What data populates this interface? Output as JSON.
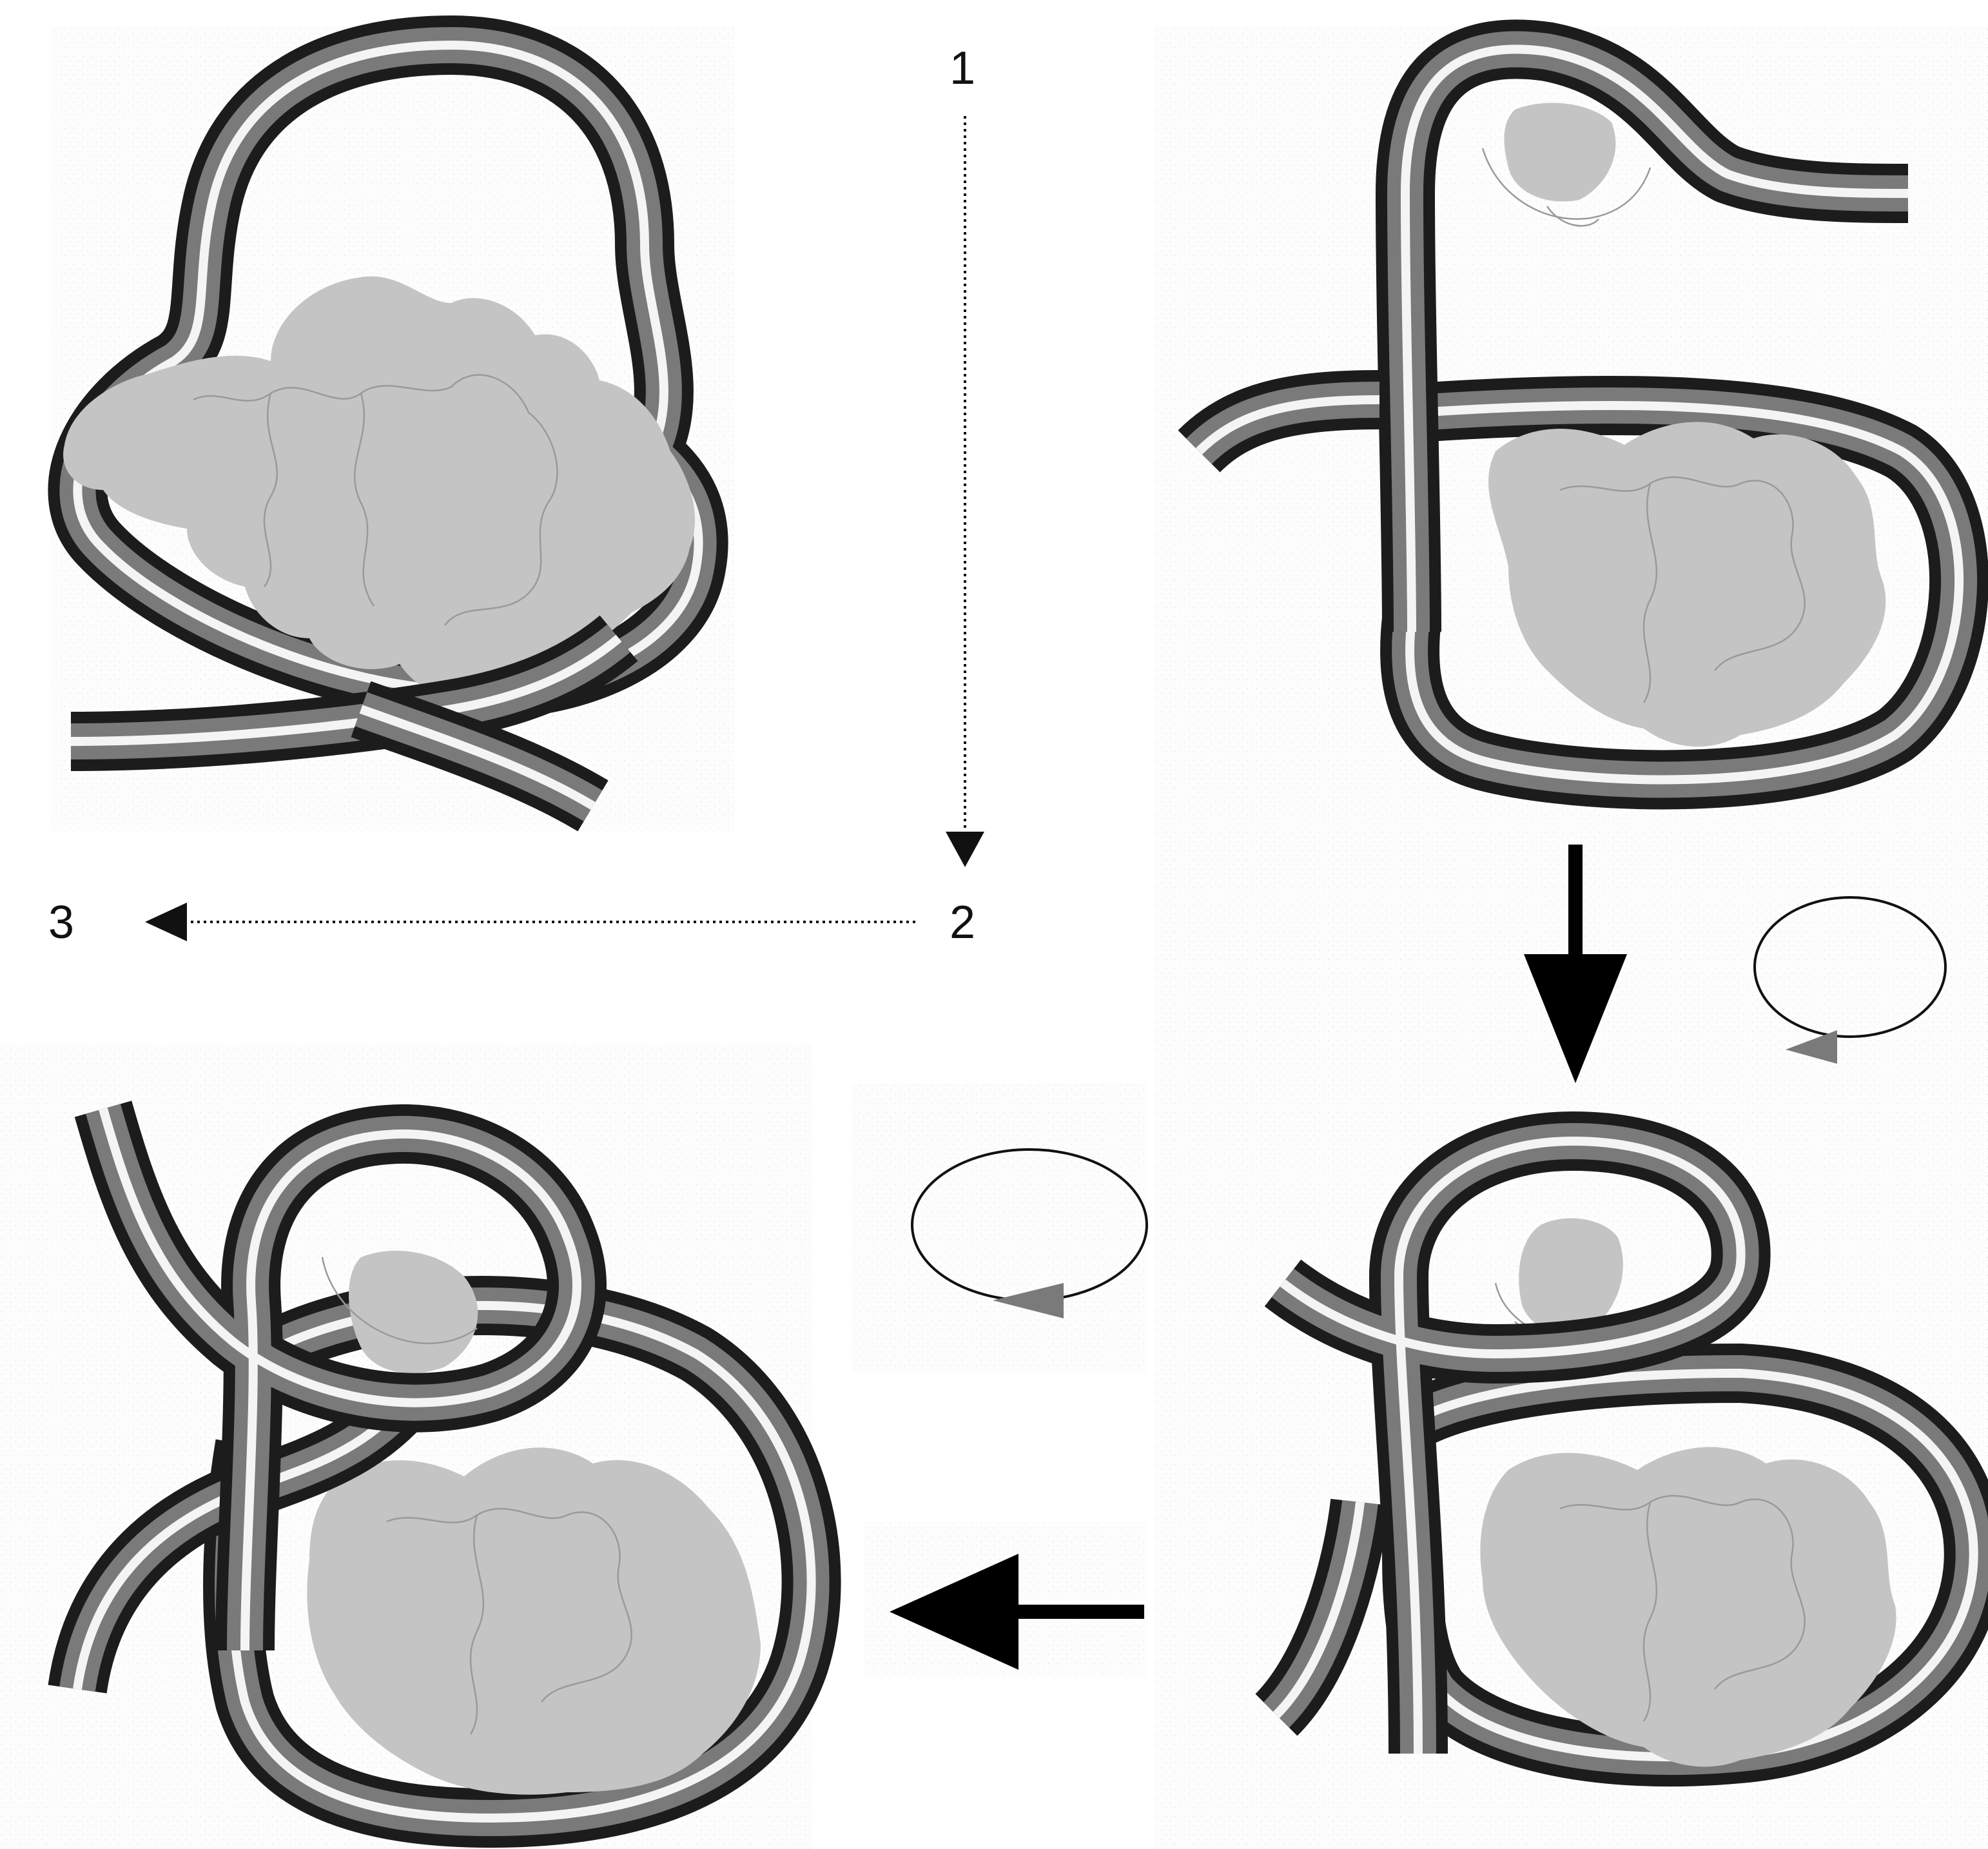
{
  "labels": {
    "step1": "1",
    "step2": "2",
    "step3": "3"
  },
  "colors": {
    "tube_dark": "#1c1c1c",
    "tube_highlight": "#f4f4f4",
    "protein_fill": "#c4c4c4",
    "rotation_arrowhead": "#7a7a7a",
    "arrow": "#000000"
  },
  "icons": {
    "rotation_indicator": "counterclockwise-rotation-icon",
    "transition_arrow": "arrow-icon"
  }
}
